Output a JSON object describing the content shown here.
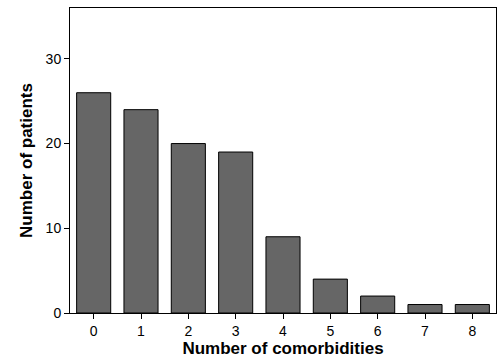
{
  "chart_data": {
    "type": "bar",
    "x_label": "Number of comorbidities",
    "y_label": "Number of patients",
    "categories": [
      "0",
      "1",
      "2",
      "3",
      "4",
      "5",
      "6",
      "7",
      "8"
    ],
    "values": [
      26,
      24,
      20,
      19,
      9,
      4,
      2,
      1,
      1
    ],
    "color": "#666666",
    "ylim": [
      0,
      36
    ],
    "yticks": [
      0,
      10,
      20,
      30
    ],
    "grid": false
  }
}
